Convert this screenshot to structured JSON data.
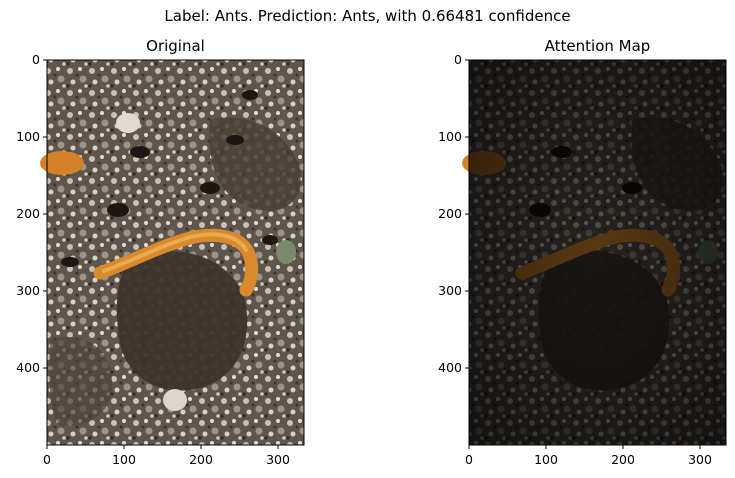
{
  "figure": {
    "suptitle": "Label: Ants. Prediction: Ants, with 0.66481 confidence"
  },
  "panels": [
    {
      "title": "Original",
      "image": "photo of soil with ants and an orange larva",
      "x_ticks": [
        "0",
        "100",
        "200",
        "300"
      ],
      "y_ticks": [
        "0",
        "100",
        "200",
        "300",
        "400"
      ]
    },
    {
      "title": "Attention Map",
      "image": "darkened attention overlay of the same photo",
      "x_ticks": [
        "0",
        "100",
        "200",
        "300"
      ],
      "y_ticks": [
        "0",
        "100",
        "200",
        "300",
        "400"
      ]
    }
  ],
  "image_extent": {
    "width": 333,
    "height": 500
  }
}
